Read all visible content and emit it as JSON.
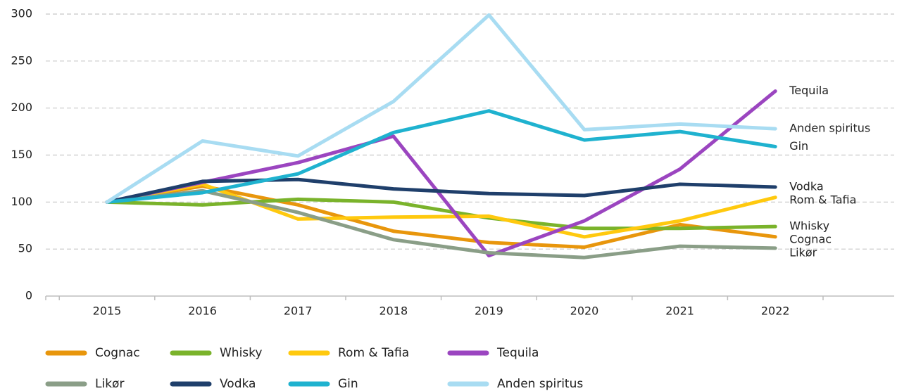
{
  "chart_data": {
    "type": "line",
    "categories": [
      "2015",
      "2016",
      "2017",
      "2018",
      "2019",
      "2020",
      "2021",
      "2022"
    ],
    "ylim": [
      0,
      300
    ],
    "yticks": [
      0,
      50,
      100,
      150,
      200,
      250,
      300
    ],
    "grid": true,
    "series": [
      {
        "name": "Cognac",
        "color": "#e8960c",
        "values": [
          100,
          117,
          97,
          69,
          57,
          52,
          76,
          63
        ]
      },
      {
        "name": "Whisky",
        "color": "#7ab32b",
        "values": [
          100,
          97,
          103,
          100,
          83,
          72,
          72,
          74
        ]
      },
      {
        "name": "Rom & Tafia",
        "color": "#ffc90e",
        "values": [
          100,
          119,
          82,
          84,
          85,
          63,
          80,
          105
        ]
      },
      {
        "name": "Tequila",
        "color": "#9b45c0",
        "values": [
          100,
          121,
          142,
          170,
          43,
          80,
          135,
          218
        ]
      },
      {
        "name": "Likør",
        "color": "#8a9e87",
        "values": [
          100,
          112,
          89,
          60,
          46,
          41,
          53,
          51
        ]
      },
      {
        "name": "Vodka",
        "color": "#1f3f6b",
        "values": [
          100,
          122,
          124,
          114,
          109,
          107,
          119,
          116
        ]
      },
      {
        "name": "Gin",
        "color": "#1fb2cf",
        "values": [
          100,
          110,
          130,
          174,
          197,
          166,
          175,
          159
        ]
      },
      {
        "name": "Anden spiritus",
        "color": "#a8dcf2",
        "values": [
          100,
          165,
          149,
          207,
          299,
          177,
          183,
          178
        ]
      }
    ]
  }
}
